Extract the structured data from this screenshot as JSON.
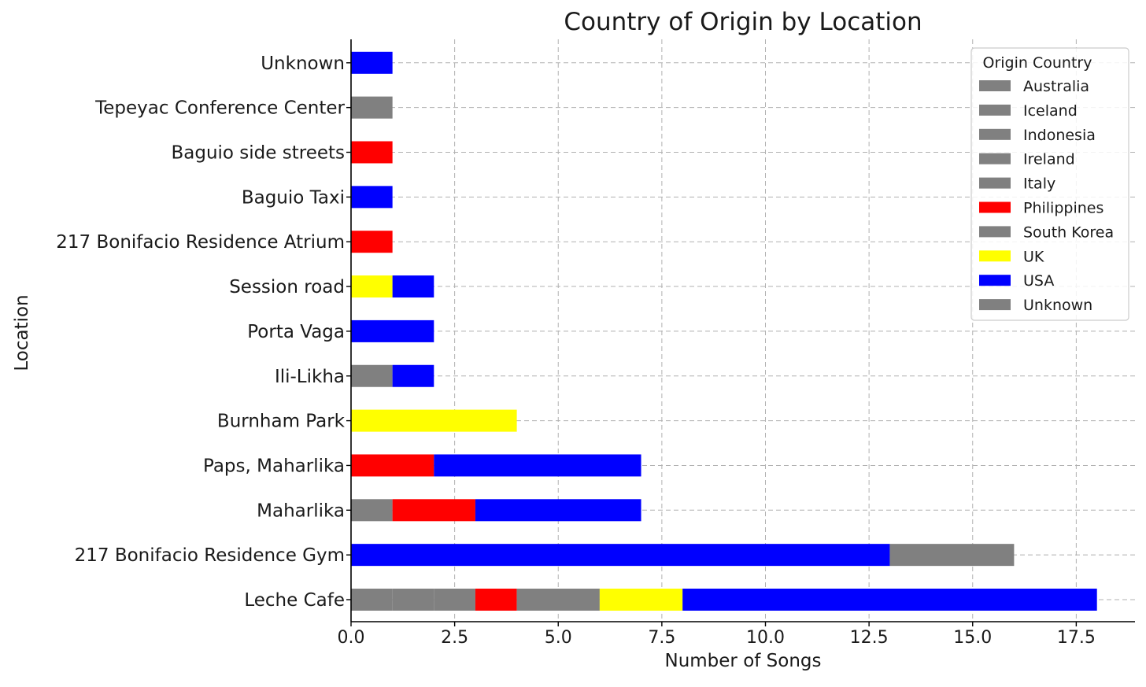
{
  "chart_data": {
    "type": "bar",
    "orientation": "horizontal",
    "stacked": true,
    "title": "Country of Origin by Location",
    "xlabel": "Number of Songs",
    "ylabel": "Location",
    "xlim": [
      0,
      18.9
    ],
    "xticks": [
      "0.0",
      "2.5",
      "5.0",
      "7.5",
      "10.0",
      "12.5",
      "15.0",
      "17.5"
    ],
    "xtick_values": [
      0,
      2.5,
      5,
      7.5,
      10,
      12.5,
      15,
      17.5
    ],
    "grid": true,
    "legend_title": "Origin Country",
    "legend_position": "top-right",
    "categories": [
      "Leche Cafe",
      "217 Bonifacio Residence Gym",
      "Maharlika",
      "Paps, Maharlika",
      "Burnham Park",
      "Ili-Likha",
      "Porta Vaga",
      "Session road",
      "217 Bonifacio Residence Atrium",
      "Baguio Taxi",
      "Baguio side streets",
      "Tepeyac Conference Center",
      "Unknown"
    ],
    "series": [
      {
        "name": "Australia",
        "color": "#808080",
        "values": [
          1,
          0,
          0,
          0,
          0,
          0,
          0,
          0,
          0,
          0,
          0,
          0,
          0
        ]
      },
      {
        "name": "Iceland",
        "color": "#808080",
        "values": [
          1,
          0,
          0,
          0,
          0,
          0,
          0,
          0,
          0,
          0,
          0,
          0,
          0
        ]
      },
      {
        "name": "Indonesia",
        "color": "#808080",
        "values": [
          1,
          0,
          1,
          0,
          0,
          1,
          0,
          0,
          0,
          0,
          0,
          0,
          0
        ]
      },
      {
        "name": "Ireland",
        "color": "#808080",
        "values": [
          0,
          0,
          0,
          0,
          0,
          0,
          0,
          0,
          0,
          0,
          0,
          0,
          0
        ]
      },
      {
        "name": "Italy",
        "color": "#808080",
        "values": [
          0,
          0,
          0,
          0,
          0,
          0,
          0,
          0,
          0,
          0,
          0,
          0,
          0
        ]
      },
      {
        "name": "Philippines",
        "color": "#ff0000",
        "values": [
          1,
          0,
          2,
          2,
          0,
          0,
          0,
          0,
          1,
          0,
          1,
          0,
          0
        ]
      },
      {
        "name": "South Korea",
        "color": "#808080",
        "values": [
          2,
          0,
          0,
          0,
          0,
          0,
          0,
          0,
          0,
          0,
          0,
          1,
          0
        ]
      },
      {
        "name": "UK",
        "color": "#ffff00",
        "values": [
          2,
          0,
          0,
          0,
          4,
          0,
          0,
          1,
          0,
          0,
          0,
          0,
          0
        ]
      },
      {
        "name": "USA",
        "color": "#0000ff",
        "values": [
          10,
          13,
          4,
          5,
          0,
          1,
          2,
          1,
          0,
          1,
          0,
          0,
          1
        ]
      },
      {
        "name": "Unknown",
        "color": "#808080",
        "values": [
          0,
          3,
          0,
          0,
          0,
          0,
          0,
          0,
          0,
          0,
          0,
          0,
          0
        ]
      }
    ]
  }
}
